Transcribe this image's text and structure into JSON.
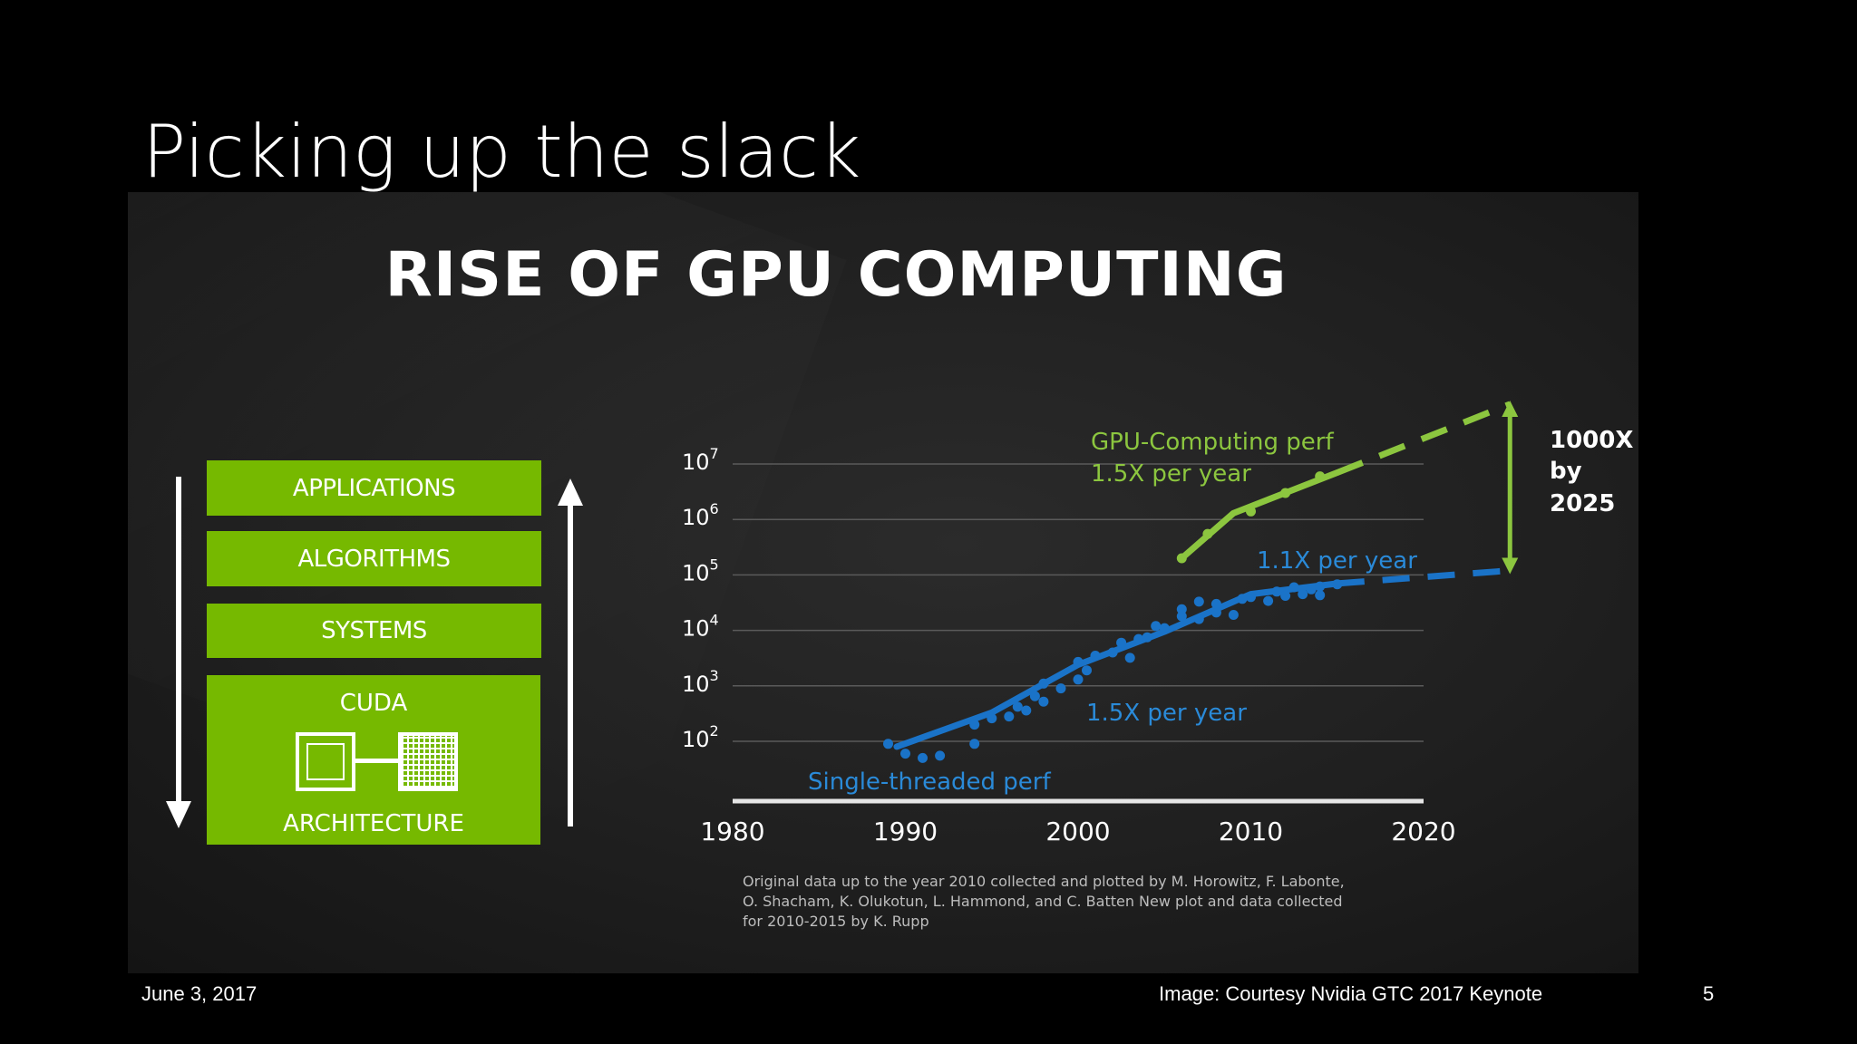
{
  "slide": {
    "title": "Picking up the slack",
    "footer_date": "June 3, 2017",
    "footer_credit": "Image: Courtesy Nvidia GTC 2017 Keynote",
    "footer_page": "5"
  },
  "figure": {
    "title": "RISE OF GPU COMPUTING",
    "stack": {
      "items": [
        "APPLICATIONS",
        "ALGORITHMS",
        "SYSTEMS"
      ],
      "cuda_label": "CUDA",
      "architecture_label": "ARCHITECTURE",
      "cpu_chip_text": "CPU",
      "gpu_chip_text": "GPU"
    },
    "citation": [
      "Original data up to the year 2010 collected and plotted by M. Horowitz, F. Labonte,",
      "O. Shacham, K. Olukotun, L. Hammond, and C. Batten New plot and data collected",
      "for 2010-2015 by K. Rupp"
    ]
  },
  "colors": {
    "green": "#76b900",
    "lime": "#8cc63f",
    "blue": "#1a73c8",
    "blue_label": "#2a8ad8",
    "background": "#000000"
  },
  "chart_data": {
    "type": "line",
    "title": "RISE OF GPU COMPUTING",
    "x_ticks": [
      1980,
      1990,
      2000,
      2010,
      2020
    ],
    "xlim": [
      1980,
      2020
    ],
    "y_ticks": [
      {
        "base": "10",
        "exp": "7"
      },
      {
        "base": "10",
        "exp": "6"
      },
      {
        "base": "10",
        "exp": "5"
      },
      {
        "base": "10",
        "exp": "4"
      },
      {
        "base": "10",
        "exp": "3"
      },
      {
        "base": "10",
        "exp": "2"
      }
    ],
    "y_scale": "log",
    "ylim": [
      10,
      10000000
    ],
    "grid": true,
    "series": [
      {
        "name": "Single-threaded perf",
        "color": "#1a73c8",
        "line": [
          [
            1989.5,
            80
          ],
          [
            1995,
            330
          ],
          [
            2000,
            2400
          ],
          [
            2005,
            9500
          ],
          [
            2010,
            45000
          ],
          [
            2015,
            70000
          ]
        ],
        "projection": [
          [
            2015,
            70000
          ],
          [
            2025,
            120000
          ]
        ],
        "points": [
          [
            1989,
            90
          ],
          [
            1990,
            60
          ],
          [
            1991,
            50
          ],
          [
            1992,
            55
          ],
          [
            1994,
            90
          ],
          [
            1994,
            200
          ],
          [
            1995,
            260
          ],
          [
            1996,
            280
          ],
          [
            1996.5,
            420
          ],
          [
            1997,
            360
          ],
          [
            1997.5,
            650
          ],
          [
            1998,
            520
          ],
          [
            1998,
            1100
          ],
          [
            1999,
            900
          ],
          [
            2000,
            1300
          ],
          [
            2000,
            2700
          ],
          [
            2000.5,
            1900
          ],
          [
            2001,
            3500
          ],
          [
            2002,
            4000
          ],
          [
            2002.5,
            6000
          ],
          [
            2003,
            3200
          ],
          [
            2003.5,
            7000
          ],
          [
            2004,
            7500
          ],
          [
            2004.5,
            12000
          ],
          [
            2005,
            11000
          ],
          [
            2006,
            18000
          ],
          [
            2006,
            24000
          ],
          [
            2007,
            16000
          ],
          [
            2007,
            33000
          ],
          [
            2008,
            21000
          ],
          [
            2008,
            30000
          ],
          [
            2009,
            19000
          ],
          [
            2009.5,
            37000
          ],
          [
            2010,
            40000
          ],
          [
            2011,
            34000
          ],
          [
            2011.5,
            50000
          ],
          [
            2012,
            42000
          ],
          [
            2012.5,
            60000
          ],
          [
            2013,
            45000
          ],
          [
            2013.5,
            55000
          ],
          [
            2014,
            43000
          ],
          [
            2014,
            62000
          ],
          [
            2015,
            68000
          ]
        ]
      },
      {
        "name": "GPU-Computing perf",
        "color": "#8cc63f",
        "line": [
          [
            2006,
            200000
          ],
          [
            2009,
            1300000
          ],
          [
            2015,
            7000000
          ]
        ],
        "projection": [
          [
            2015,
            7000000
          ],
          [
            2025,
            120000000
          ]
        ],
        "points": [
          [
            2006,
            200000
          ],
          [
            2007.5,
            550000
          ],
          [
            2010,
            1400000
          ],
          [
            2012,
            3000000
          ],
          [
            2014,
            6000000
          ]
        ]
      }
    ],
    "annotations": {
      "gpu_label": "GPU-Computing perf",
      "gpu_rate": "1.5X per year",
      "cpu_recent_rate": "1.1X per year",
      "cpu_early_rate": "1.5X per year",
      "cpu_label": "Single-threaded perf",
      "gap_line1": "1000X",
      "gap_line2": "by",
      "gap_line3": "2025"
    }
  }
}
